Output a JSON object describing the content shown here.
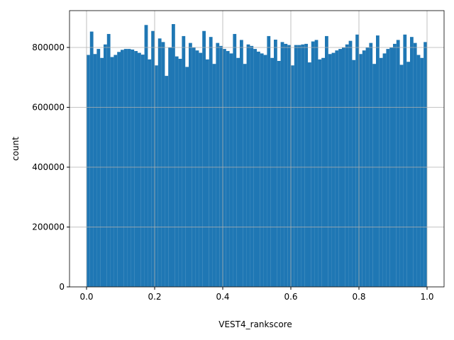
{
  "chart_data": {
    "type": "histogram",
    "xlabel": "VEST4_rankscore",
    "ylabel": "count",
    "color": "#1f77b4",
    "grid": true,
    "bins": [
      0,
      0.01,
      0.02,
      0.03,
      0.04,
      0.05,
      0.06,
      0.07,
      0.08,
      0.09,
      0.1,
      0.11,
      0.12,
      0.13,
      0.14,
      0.15,
      0.16,
      0.17,
      0.18,
      0.19,
      0.2,
      0.21,
      0.22,
      0.23,
      0.24,
      0.25,
      0.26,
      0.27,
      0.28,
      0.29,
      0.3,
      0.31,
      0.32,
      0.33,
      0.34,
      0.35,
      0.36,
      0.37,
      0.38,
      0.39,
      0.4,
      0.41,
      0.42,
      0.43,
      0.44,
      0.45,
      0.46,
      0.47,
      0.48,
      0.49,
      0.5,
      0.51,
      0.52,
      0.53,
      0.54,
      0.55,
      0.56,
      0.57,
      0.58,
      0.59,
      0.6,
      0.61,
      0.62,
      0.63,
      0.64,
      0.65,
      0.66,
      0.67,
      0.68,
      0.69,
      0.7,
      0.71,
      0.72,
      0.73,
      0.74,
      0.75,
      0.76,
      0.77,
      0.78,
      0.79,
      0.8,
      0.81,
      0.82,
      0.83,
      0.84,
      0.85,
      0.86,
      0.87,
      0.88,
      0.89,
      0.9,
      0.91,
      0.92,
      0.93,
      0.94,
      0.95,
      0.96,
      0.97,
      0.98,
      0.99,
      1
    ],
    "values": [
      775000,
      853000,
      778000,
      795000,
      765000,
      810000,
      845000,
      768000,
      775000,
      785000,
      792000,
      795000,
      795000,
      793000,
      788000,
      782000,
      776000,
      875000,
      760000,
      855000,
      740000,
      830000,
      818000,
      705000,
      800000,
      878000,
      770000,
      762000,
      838000,
      735000,
      815000,
      800000,
      790000,
      782000,
      855000,
      760000,
      835000,
      745000,
      815000,
      805000,
      795000,
      788000,
      780000,
      845000,
      765000,
      825000,
      745000,
      810000,
      805000,
      795000,
      786000,
      780000,
      775000,
      838000,
      765000,
      826000,
      755000,
      818000,
      812000,
      808000,
      740000,
      808000,
      808000,
      810000,
      812000,
      750000,
      820000,
      825000,
      760000,
      765000,
      838000,
      778000,
      782000,
      790000,
      795000,
      800000,
      810000,
      822000,
      758000,
      843000,
      778000,
      790000,
      800000,
      815000,
      745000,
      840000,
      765000,
      780000,
      795000,
      800000,
      812000,
      825000,
      742000,
      843000,
      752000,
      835000,
      815000,
      775000,
      765000,
      818000
    ],
    "xlim": [
      -0.05,
      1.05
    ],
    "ylim": [
      0,
      923000
    ],
    "xticks": [
      {
        "value": 0,
        "label": "0.0"
      },
      0.2,
      0.4,
      0.6,
      0.8,
      {
        "value": 1,
        "label": "1.0"
      }
    ],
    "yticks": [
      0,
      200000,
      400000,
      600000,
      800000
    ]
  }
}
